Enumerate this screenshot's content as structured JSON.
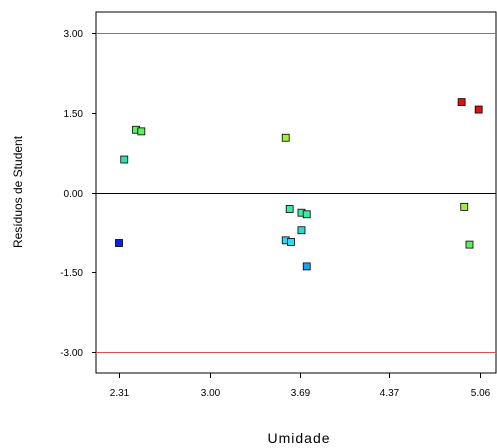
{
  "chart_data": {
    "type": "scatter",
    "title": "",
    "xlabel": "Umidade",
    "ylabel": "Resíduos de Student",
    "xlim": [
      2.31,
      5.06
    ],
    "ylim": [
      -3.0,
      3.0
    ],
    "x_ticks": [
      "2.31",
      "3.00",
      "3.69",
      "4.37",
      "5.06"
    ],
    "y_ticks": [
      "3.00",
      "1.50",
      "0.00",
      "-1.50",
      "-3.00"
    ],
    "reference_lines": [
      {
        "y": 3.0,
        "color": "#e05050"
      },
      {
        "y": 0.0,
        "color": "#000000"
      },
      {
        "y": -3.0,
        "color": "#e05050"
      }
    ],
    "grid": false,
    "points": [
      {
        "x": 2.31,
        "y": -0.95,
        "color": "#1020e0"
      },
      {
        "x": 2.35,
        "y": 0.62,
        "color": "#30e0b0"
      },
      {
        "x": 2.44,
        "y": 1.18,
        "color": "#60ee60"
      },
      {
        "x": 2.48,
        "y": 1.15,
        "color": "#60ee60"
      },
      {
        "x": 3.58,
        "y": 1.03,
        "color": "#a0ee40"
      },
      {
        "x": 3.58,
        "y": -0.9,
        "color": "#30d8f0"
      },
      {
        "x": 3.61,
        "y": -0.31,
        "color": "#40e8a0"
      },
      {
        "x": 3.62,
        "y": -0.93,
        "color": "#30d8f0"
      },
      {
        "x": 3.7,
        "y": -0.38,
        "color": "#40e8a0"
      },
      {
        "x": 3.7,
        "y": -0.71,
        "color": "#30d8d0"
      },
      {
        "x": 3.74,
        "y": -0.41,
        "color": "#40e8a0"
      },
      {
        "x": 3.74,
        "y": -1.39,
        "color": "#20a0f0"
      },
      {
        "x": 4.92,
        "y": 1.7,
        "color": "#e01010"
      },
      {
        "x": 4.94,
        "y": -0.27,
        "color": "#a0ee40"
      },
      {
        "x": 4.98,
        "y": -0.98,
        "color": "#60ee60"
      },
      {
        "x": 5.05,
        "y": 1.56,
        "color": "#e01010"
      }
    ]
  }
}
